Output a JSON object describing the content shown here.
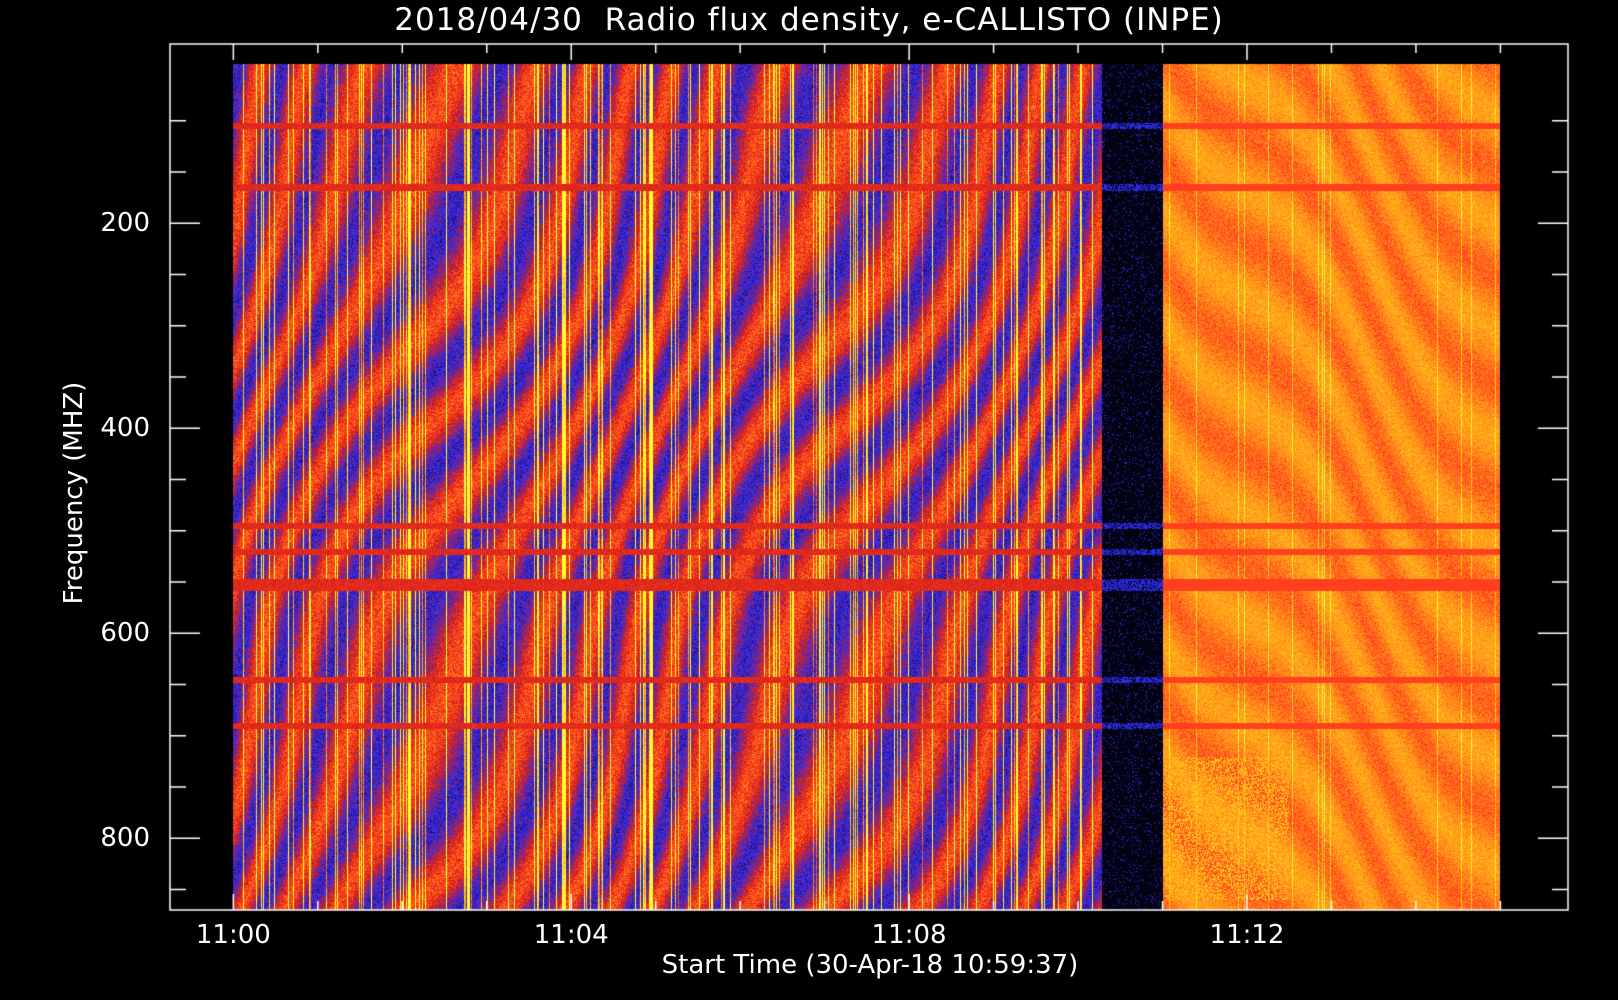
{
  "chart_data": {
    "type": "heatmap",
    "title": "2018/04/30  Radio flux density, e-CALLISTO (INPE)",
    "xlabel": "Start Time (30-Apr-18 10:59:37)",
    "ylabel": "Frequency (MHZ)",
    "x_tick_labels": [
      "11:00",
      "11:04",
      "11:08",
      "11:12"
    ],
    "x_tick_minutes": [
      0,
      4,
      8,
      12
    ],
    "y_tick_labels": [
      "200",
      "400",
      "600",
      "800"
    ],
    "y_tick_values": [
      200,
      400,
      600,
      800
    ],
    "xlim_minutes": [
      -0.75,
      15.8
    ],
    "ylim_mhz": [
      870,
      25
    ],
    "data_x_range_minutes": [
      0,
      15
    ],
    "data_y_range_mhz": [
      45,
      870
    ],
    "y_inverted": true,
    "colormap": [
      "#000000",
      "#1a0f8c",
      "#3333ff",
      "#c41a1a",
      "#ff3b1f",
      "#ff8c1a",
      "#ffc21a",
      "#ffff33"
    ],
    "segments": [
      {
        "x0": 0.0,
        "x1": 10.28,
        "state": "bursty"
      },
      {
        "x0": 10.28,
        "x1": 11.0,
        "state": "quiet"
      },
      {
        "x0": 11.0,
        "x1": 15.0,
        "state": "enhanced"
      }
    ],
    "horizontal_bands_mhz": [
      105,
      165,
      495,
      520,
      550,
      555,
      645,
      690
    ]
  }
}
